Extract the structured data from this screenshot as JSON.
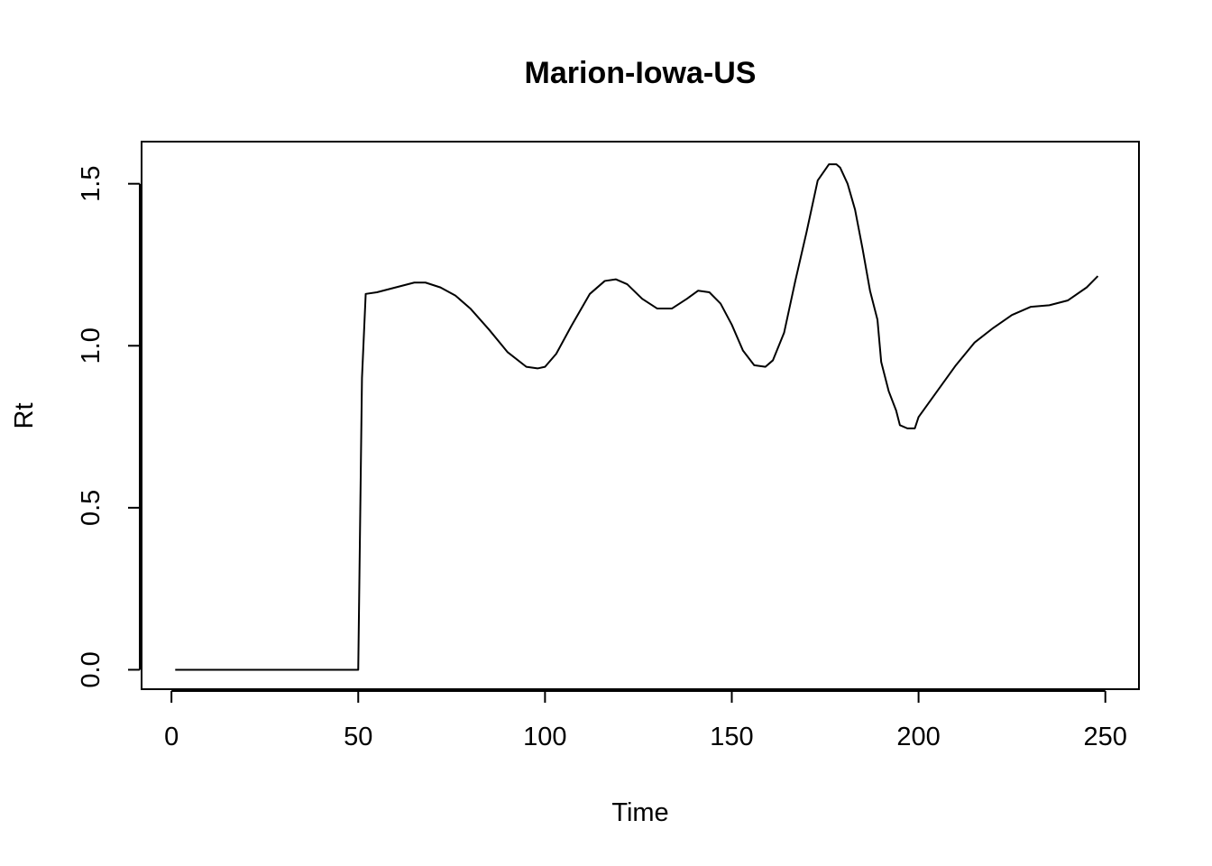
{
  "chart_data": {
    "type": "line",
    "title": "Marion-Iowa-US",
    "xlabel": "Time",
    "ylabel": "Rt",
    "xlim": [
      -8,
      259
    ],
    "ylim": [
      -0.06,
      1.63
    ],
    "xticks": [
      0,
      50,
      100,
      150,
      200,
      250
    ],
    "yticks": [
      0.0,
      0.5,
      1.0,
      1.5
    ],
    "xtick_labels": [
      "0",
      "50",
      "100",
      "150",
      "200",
      "250"
    ],
    "ytick_labels": [
      "0.0",
      "0.5",
      "1.0",
      "1.5"
    ],
    "grid": false,
    "legend": "none",
    "series": [
      {
        "x": [
          1,
          10,
          20,
          30,
          40,
          50,
          51,
          52,
          55,
          60,
          65,
          68,
          72,
          76,
          80,
          85,
          90,
          95,
          98,
          100,
          103,
          107,
          112,
          116,
          119,
          122,
          126,
          130,
          134,
          138,
          141,
          144,
          147,
          150,
          153,
          156,
          159,
          161,
          164,
          167,
          170,
          173,
          176,
          178,
          179,
          181,
          183,
          185,
          187,
          189,
          190,
          192,
          194,
          195,
          197,
          199,
          200,
          205,
          210,
          215,
          220,
          225,
          230,
          235,
          240,
          245,
          248
        ],
        "y": [
          0.0,
          0.0,
          0.0,
          0.0,
          0.0,
          0.0,
          0.9,
          1.16,
          1.165,
          1.18,
          1.195,
          1.195,
          1.18,
          1.155,
          1.115,
          1.05,
          0.98,
          0.935,
          0.93,
          0.935,
          0.975,
          1.06,
          1.16,
          1.2,
          1.205,
          1.19,
          1.145,
          1.115,
          1.115,
          1.145,
          1.17,
          1.165,
          1.13,
          1.065,
          0.985,
          0.94,
          0.935,
          0.955,
          1.04,
          1.2,
          1.35,
          1.51,
          1.56,
          1.56,
          1.55,
          1.5,
          1.42,
          1.3,
          1.17,
          1.08,
          0.95,
          0.86,
          0.8,
          0.755,
          0.745,
          0.745,
          0.78,
          0.86,
          0.94,
          1.01,
          1.055,
          1.095,
          1.12,
          1.125,
          1.14,
          1.18,
          1.215
        ]
      }
    ]
  }
}
